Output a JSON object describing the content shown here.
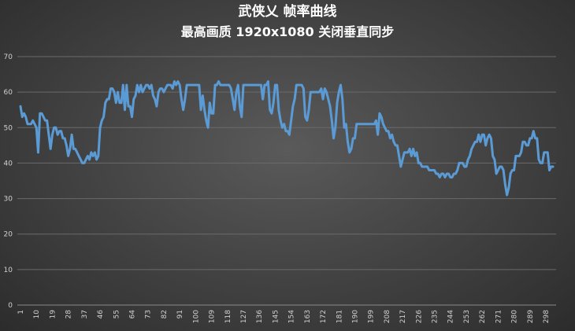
{
  "chart_data": {
    "type": "line",
    "title": "武侠乂 帧率曲线",
    "subtitle": "最高画质 1920x1080 关闭垂直同步",
    "xlabel": "",
    "ylabel": "",
    "ylim": [
      0,
      70
    ],
    "yticks": [
      0,
      10,
      20,
      30,
      40,
      50,
      60,
      70
    ],
    "xticks": [
      1,
      10,
      19,
      28,
      37,
      46,
      55,
      64,
      73,
      82,
      91,
      100,
      109,
      118,
      127,
      136,
      145,
      154,
      163,
      172,
      181,
      190,
      199,
      208,
      217,
      226,
      235,
      244,
      253,
      262,
      271,
      280,
      289,
      298
    ],
    "grid": true,
    "legend": "none",
    "line_color": "#5b9bd5",
    "series": [
      {
        "values": [
          56,
          53,
          54,
          53,
          51,
          51,
          51,
          52,
          51,
          50,
          43,
          54,
          54,
          53,
          52,
          52,
          48,
          44,
          48,
          50,
          50,
          48,
          49,
          49,
          47,
          47,
          45,
          42,
          44,
          48,
          44,
          44,
          43,
          42,
          41,
          40,
          40,
          41,
          42,
          41,
          43,
          42,
          43,
          41,
          42,
          50,
          52,
          53,
          57,
          58,
          58,
          61,
          61,
          60,
          57,
          60,
          57,
          57,
          62,
          55,
          62,
          56,
          56,
          53,
          58,
          59,
          62,
          60,
          62,
          60,
          61,
          62,
          62,
          61,
          62,
          59,
          58,
          56,
          60,
          61,
          61,
          60,
          61,
          62,
          62,
          62,
          61,
          63,
          62,
          63,
          62,
          58,
          55,
          58,
          62,
          62,
          62,
          62,
          62,
          62,
          62,
          62,
          55,
          59,
          55,
          52,
          50,
          57,
          54,
          54,
          62,
          62,
          63,
          62,
          62,
          62,
          62,
          62,
          62,
          61,
          58,
          55,
          60,
          62,
          56,
          53,
          62,
          62,
          62,
          62,
          62,
          62,
          62,
          62,
          62,
          62,
          62,
          58,
          62,
          62,
          63,
          55,
          54,
          57,
          62,
          62,
          55,
          52,
          50,
          51,
          49,
          49,
          48,
          52,
          56,
          58,
          62,
          62,
          62,
          62,
          61,
          53,
          52,
          55,
          60,
          60,
          60,
          60,
          60,
          60,
          61,
          58,
          61,
          60,
          58,
          56,
          52,
          47,
          50,
          57,
          60,
          62,
          58,
          50,
          51,
          46,
          43,
          44,
          47,
          47,
          51,
          51,
          51,
          51,
          51,
          51,
          51,
          51,
          51,
          51,
          51,
          52,
          48,
          54,
          53,
          51,
          50,
          49,
          49,
          47,
          48,
          46,
          45,
          45,
          42,
          39,
          41,
          43,
          43,
          43,
          44,
          42,
          44,
          42,
          43,
          40,
          40,
          39,
          39,
          39,
          39,
          38,
          38,
          38,
          38,
          37,
          37,
          36,
          37,
          37,
          36,
          37,
          37,
          36,
          36,
          37,
          37,
          38,
          40,
          40,
          40,
          39,
          39,
          41,
          42,
          44,
          45,
          46,
          46,
          48,
          46,
          48,
          48,
          45,
          47,
          48,
          47,
          42,
          41,
          37,
          38,
          39,
          39,
          38,
          34,
          31,
          33,
          37,
          38,
          38,
          42,
          42,
          42,
          43,
          46,
          46,
          45,
          45,
          47,
          47,
          49,
          47,
          47,
          41,
          40,
          40,
          43,
          43,
          43,
          38,
          39,
          39
        ]
      }
    ]
  }
}
